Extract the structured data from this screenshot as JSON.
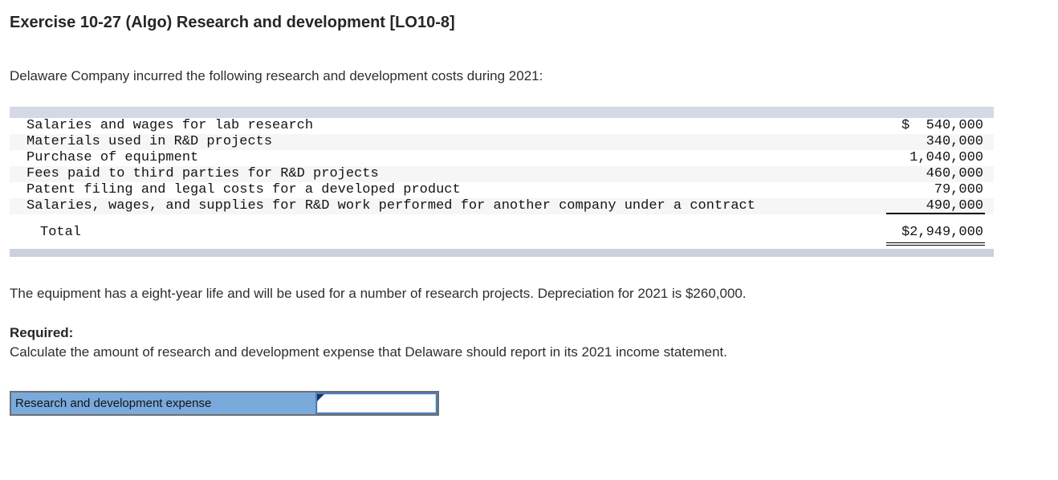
{
  "header": {
    "title": "Exercise 10-27 (Algo) Research and development [LO10-8]"
  },
  "body": {
    "intro": "Delaware Company incurred the following research and development costs during 2021:",
    "note": "The equipment has a eight-year life and will be used for a number of research projects. Depreciation for 2021 is $260,000.",
    "required_label": "Required:",
    "required_text": "Calculate the amount of research and development expense that Delaware should report in its 2021 income statement."
  },
  "cost_table": {
    "rows": [
      {
        "label": "Salaries and wages for lab research",
        "amount": "$  540,000"
      },
      {
        "label": "Materials used in R&D projects",
        "amount": "340,000"
      },
      {
        "label": "Purchase of equipment",
        "amount": "1,040,000"
      },
      {
        "label": "Fees paid to third parties for R&D projects",
        "amount": "460,000"
      },
      {
        "label": "Patent filing and legal costs for a developed product",
        "amount": "79,000"
      },
      {
        "label": "Salaries, wages, and supplies for R&D work performed for another company under a contract",
        "amount": "490,000"
      }
    ],
    "total_label": "Total",
    "total_amount": "$2,949,000"
  },
  "answer": {
    "label": "Research and development expense",
    "input_value": ""
  },
  "colors": {
    "band_top": "#d5d9e4",
    "band_bottom": "#cbd0dd",
    "row_stripe": "#f6f6f7",
    "answer_cell_blue": "#7aa9dc",
    "input_border_blue": "#4a7ebc",
    "marker_navy": "#16375e",
    "table_outer_border": "#6f6f6f"
  }
}
